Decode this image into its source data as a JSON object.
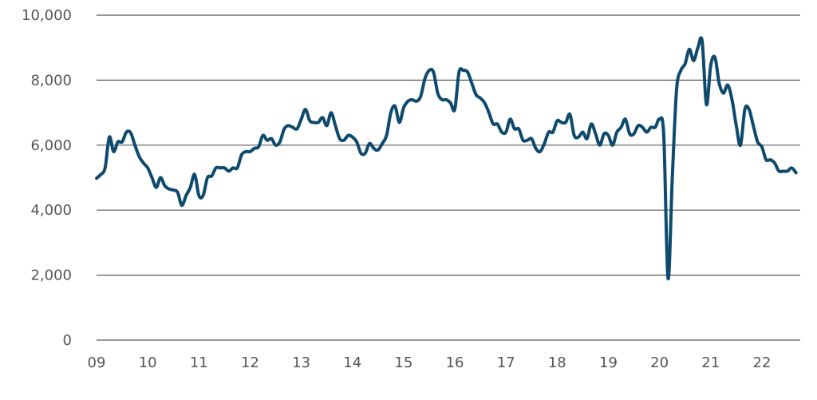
{
  "chart_data": {
    "type": "line",
    "title": "",
    "xlabel": "",
    "ylabel": "",
    "ylim": [
      0,
      10000
    ],
    "y_ticks": [
      0,
      2000,
      4000,
      6000,
      8000,
      10000
    ],
    "y_tick_labels": [
      "0",
      "2,000",
      "4,000",
      "6,000",
      "8,000",
      "10,000"
    ],
    "xlim": [
      2009.0,
      2022.75
    ],
    "x_ticks": [
      2009,
      2010,
      2011,
      2012,
      2013,
      2014,
      2015,
      2016,
      2017,
      2018,
      2019,
      2020,
      2021,
      2022
    ],
    "x_tick_labels": [
      "09",
      "10",
      "11",
      "12",
      "13",
      "14",
      "15",
      "16",
      "17",
      "18",
      "19",
      "20",
      "21",
      "22"
    ],
    "grid": true,
    "line_color": "#0e4a6e",
    "series": [
      {
        "x": [
          2009.0,
          2009.083,
          2009.167,
          2009.25,
          2009.333,
          2009.417,
          2009.5,
          2009.583,
          2009.667,
          2009.75,
          2009.833,
          2009.917,
          2010.0,
          2010.083,
          2010.167,
          2010.25,
          2010.333,
          2010.417,
          2010.5,
          2010.583,
          2010.667,
          2010.75,
          2010.833,
          2010.917,
          2011.0,
          2011.083,
          2011.167,
          2011.25,
          2011.333,
          2011.417,
          2011.5,
          2011.583,
          2011.667,
          2011.75,
          2011.833,
          2011.917,
          2012.0,
          2012.083,
          2012.167,
          2012.25,
          2012.333,
          2012.417,
          2012.5,
          2012.583,
          2012.667,
          2012.75,
          2012.833,
          2012.917,
          2013.0,
          2013.083,
          2013.167,
          2013.25,
          2013.333,
          2013.417,
          2013.5,
          2013.583,
          2013.667,
          2013.75,
          2013.833,
          2013.917,
          2014.0,
          2014.083,
          2014.167,
          2014.25,
          2014.333,
          2014.417,
          2014.5,
          2014.583,
          2014.667,
          2014.75,
          2014.833,
          2014.917,
          2015.0,
          2015.083,
          2015.167,
          2015.25,
          2015.333,
          2015.417,
          2015.5,
          2015.583,
          2015.667,
          2015.75,
          2015.833,
          2015.917,
          2016.0,
          2016.083,
          2016.167,
          2016.25,
          2016.333,
          2016.417,
          2016.5,
          2016.583,
          2016.667,
          2016.75,
          2016.833,
          2016.917,
          2017.0,
          2017.083,
          2017.167,
          2017.25,
          2017.333,
          2017.417,
          2017.5,
          2017.583,
          2017.667,
          2017.75,
          2017.833,
          2017.917,
          2018.0,
          2018.083,
          2018.167,
          2018.25,
          2018.333,
          2018.417,
          2018.5,
          2018.583,
          2018.667,
          2018.75,
          2018.833,
          2018.917,
          2019.0,
          2019.083,
          2019.167,
          2019.25,
          2019.333,
          2019.417,
          2019.5,
          2019.583,
          2019.667,
          2019.75,
          2019.833,
          2019.917,
          2020.0,
          2020.083,
          2020.167,
          2020.25,
          2020.333,
          2020.417,
          2020.5,
          2020.583,
          2020.667,
          2020.75,
          2020.833,
          2020.917,
          2021.0,
          2021.083,
          2021.167,
          2021.25,
          2021.333,
          2021.417,
          2021.5,
          2021.583,
          2021.667,
          2021.75,
          2021.833,
          2021.917,
          2022.0,
          2022.083,
          2022.167,
          2022.25,
          2022.333,
          2022.417,
          2022.5,
          2022.583,
          2022.667
        ],
        "values": [
          4980,
          5100,
          5300,
          6250,
          5800,
          6100,
          6100,
          6400,
          6380,
          6000,
          5650,
          5450,
          5300,
          5000,
          4700,
          5000,
          4750,
          4650,
          4620,
          4550,
          4150,
          4450,
          4700,
          5100,
          4450,
          4450,
          5000,
          5050,
          5300,
          5300,
          5300,
          5200,
          5300,
          5300,
          5700,
          5800,
          5800,
          5900,
          5950,
          6300,
          6150,
          6200,
          6000,
          6100,
          6500,
          6600,
          6550,
          6500,
          6800,
          7100,
          6750,
          6700,
          6700,
          6850,
          6600,
          7000,
          6600,
          6200,
          6150,
          6300,
          6250,
          6100,
          5750,
          5750,
          6050,
          5900,
          5850,
          6050,
          6300,
          7000,
          7200,
          6700,
          7150,
          7350,
          7400,
          7350,
          7500,
          8050,
          8300,
          8250,
          7600,
          7400,
          7400,
          7300,
          7100,
          8250,
          8300,
          8250,
          7900,
          7550,
          7450,
          7300,
          7000,
          6650,
          6650,
          6400,
          6400,
          6800,
          6500,
          6500,
          6150,
          6150,
          6200,
          5900,
          5800,
          6050,
          6400,
          6400,
          6750,
          6700,
          6700,
          6950,
          6300,
          6250,
          6400,
          6200,
          6650,
          6350,
          6000,
          6350,
          6300,
          6000,
          6400,
          6550,
          6800,
          6350,
          6350,
          6600,
          6550,
          6400,
          6550,
          6550,
          6800,
          6300,
          1900,
          5000,
          7700,
          8300,
          8500,
          8950,
          8600,
          9000,
          9200,
          7250,
          8450,
          8700,
          7900,
          7600,
          7850,
          7400,
          6600,
          6000,
          7100,
          7100,
          6600,
          6100,
          5950,
          5550,
          5550,
          5450,
          5200,
          5200,
          5200,
          5300,
          5150
        ]
      }
    ]
  }
}
